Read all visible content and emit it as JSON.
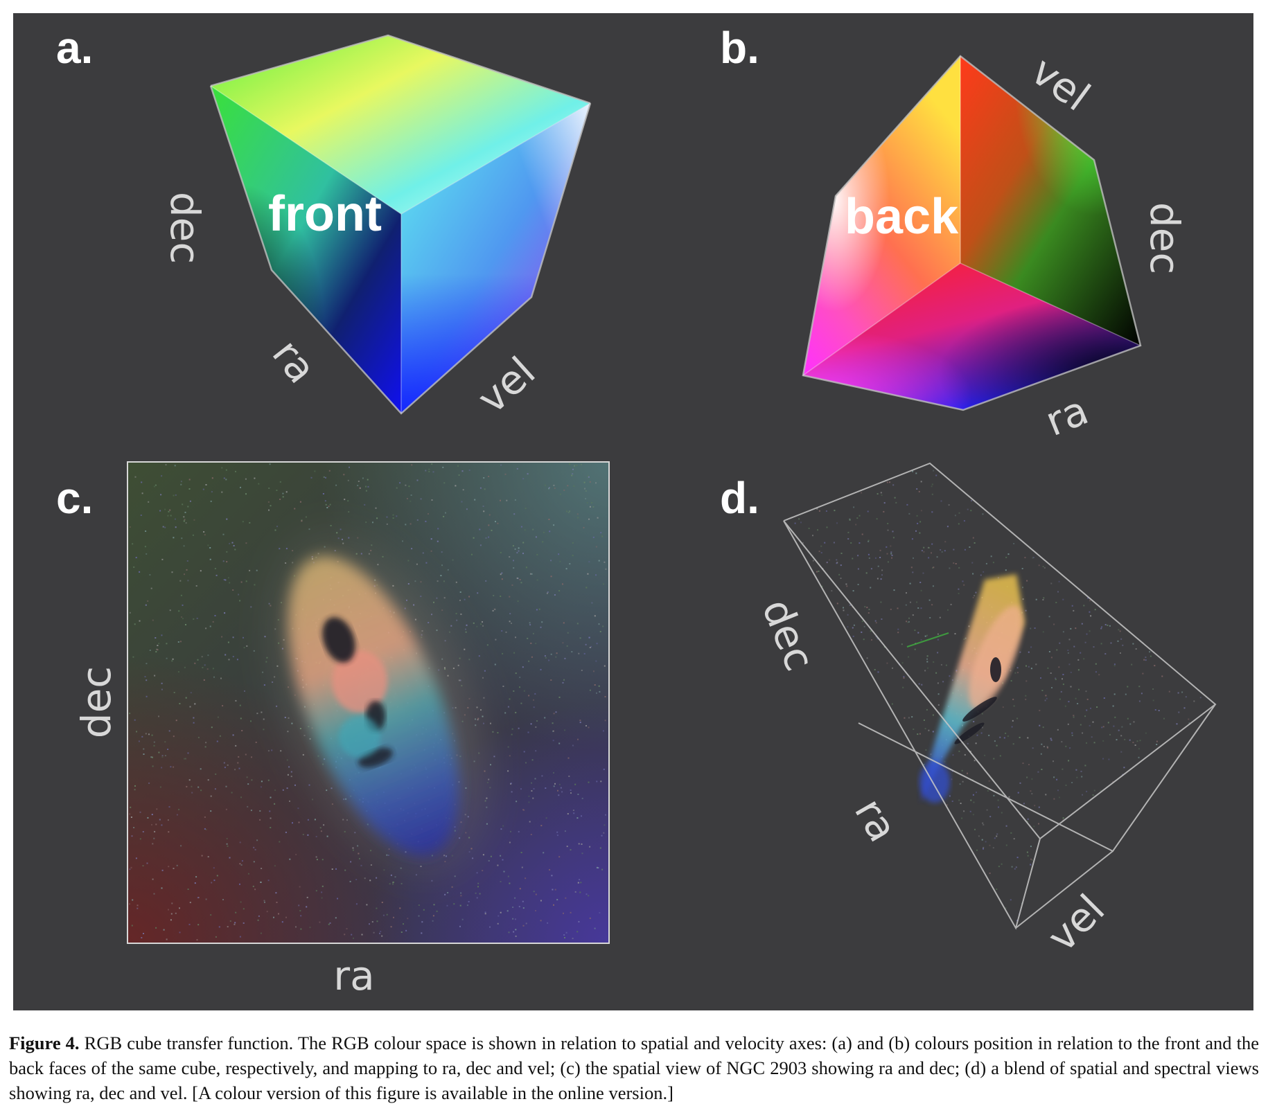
{
  "panels": {
    "a": {
      "label": "a.",
      "face_label": "front",
      "axes": {
        "dec": "dec",
        "ra": "ra",
        "vel": "vel"
      }
    },
    "b": {
      "label": "b.",
      "face_label": "back",
      "axes": {
        "vel": "vel",
        "dec": "dec",
        "ra": "ra"
      }
    },
    "c": {
      "label": "c.",
      "axes": {
        "dec": "dec",
        "ra": "ra"
      }
    },
    "d": {
      "label": "d.",
      "axes": {
        "dec": "dec",
        "ra": "ra",
        "vel": "vel"
      }
    }
  },
  "caption": {
    "label": "Figure 4.",
    "text": "RGB cube transfer function. The RGB colour space is shown in relation to spatial and velocity axes: (a) and (b) colours position in relation to the front and the back faces of the same cube, respectively, and mapping to ra, dec and vel; (c) the spatial view of NGC 2903 showing ra and dec; (d) a blend of spatial and spectral views showing ra, dec and vel. [A colour version of this figure is available in the online version.]"
  },
  "colors": {
    "panel_background": "#3c3c3e",
    "red": "#ff2020",
    "green": "#40ff40",
    "blue": "#2020ff",
    "cyan": "#40f0f0",
    "magenta": "#ff30ff",
    "yellow": "#ffff40",
    "white": "#ffffff",
    "black": "#000000"
  }
}
